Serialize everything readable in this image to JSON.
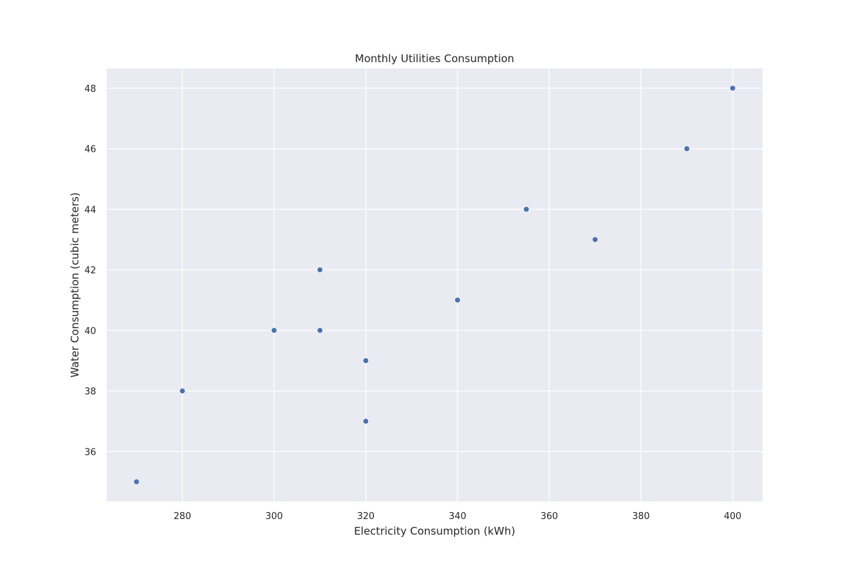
{
  "chart_data": {
    "type": "scatter",
    "title": "Monthly Utilities Consumption",
    "xlabel": "Electricity Consumption (kWh)",
    "ylabel": "Water Consumption (cubic meters)",
    "xlim": [
      263.5,
      406.5
    ],
    "ylim": [
      34.35,
      48.65
    ],
    "x_ticks": [
      280,
      300,
      320,
      340,
      360,
      380,
      400
    ],
    "y_ticks": [
      36,
      38,
      40,
      42,
      44,
      46,
      48
    ],
    "grid": true,
    "legend": "none",
    "colors": {
      "background": "#eaeaf2",
      "grid": "#ffffff",
      "points": "#4c72b0"
    },
    "points": [
      {
        "x": 270,
        "y": 35
      },
      {
        "x": 280,
        "y": 38
      },
      {
        "x": 300,
        "y": 40
      },
      {
        "x": 310,
        "y": 42
      },
      {
        "x": 310,
        "y": 40
      },
      {
        "x": 320,
        "y": 39
      },
      {
        "x": 320,
        "y": 37
      },
      {
        "x": 340,
        "y": 41
      },
      {
        "x": 355,
        "y": 44
      },
      {
        "x": 370,
        "y": 43
      },
      {
        "x": 390,
        "y": 46
      },
      {
        "x": 400,
        "y": 48
      }
    ]
  }
}
